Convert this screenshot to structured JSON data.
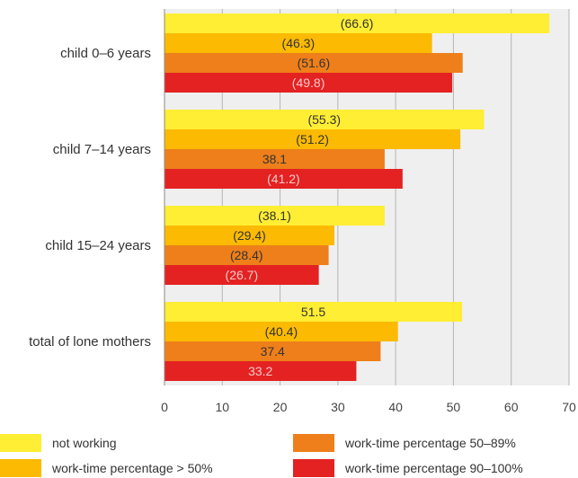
{
  "chart_data": {
    "type": "bar",
    "orientation": "horizontal",
    "categories": [
      "child 0–6 years",
      "child 7–14 years",
      "child 15–24 years",
      "total of lone mothers"
    ],
    "series": [
      {
        "name": "not working",
        "color": "#FFEE33",
        "values": [
          66.6,
          55.3,
          38.1,
          51.5
        ],
        "labels": [
          "(66.6)",
          "(55.3)",
          "(38.1)",
          "51.5"
        ],
        "label_color": "#333333"
      },
      {
        "name": "work-time percentage > 50%",
        "color": "#FCBA03",
        "values": [
          46.3,
          51.2,
          29.4,
          40.4
        ],
        "labels": [
          "(46.3)",
          "(51.2)",
          "(29.4)",
          "(40.4)"
        ],
        "label_color": "#333333"
      },
      {
        "name": "work-time percentage 50–89%",
        "color": "#EE7F1A",
        "values": [
          51.6,
          38.1,
          28.4,
          37.4
        ],
        "labels": [
          "(51.6)",
          "38.1",
          "(28.4)",
          "37.4"
        ],
        "label_color": "#333333"
      },
      {
        "name": "work-time percentage 90–100%",
        "color": "#E42222",
        "values": [
          49.8,
          41.2,
          26.7,
          33.2
        ],
        "labels": [
          "(49.8)",
          "(41.2)",
          "(26.7)",
          "33.2"
        ],
        "label_color": "#F6C9C9"
      }
    ],
    "xlim": [
      0,
      70
    ],
    "xticks": [
      "0",
      "10",
      "20",
      "30",
      "40",
      "50",
      "60",
      "70"
    ],
    "grid": true,
    "legend_position": "bottom"
  }
}
